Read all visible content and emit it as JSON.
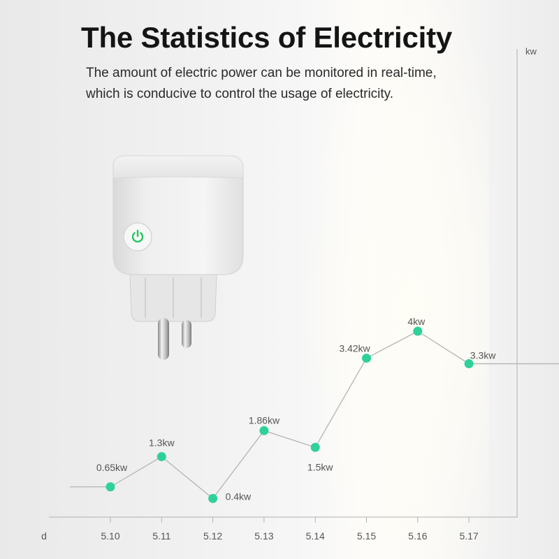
{
  "header": {
    "title": "The Statistics of Electricity",
    "subtitle_line1": "The amount of electric power can be monitored in real-time,",
    "subtitle_line2": "which is conducive to control the usage of electricity."
  },
  "colors": {
    "accent_green": "#2fd19b",
    "line": "#b4b4b4",
    "axis": "#b0b0b0",
    "text": "#555555",
    "power_icon": "#22c55e"
  },
  "product": {
    "icon": "power-icon"
  },
  "chart_data": {
    "type": "line",
    "title": "The Statistics of Electricity",
    "xlabel": "d",
    "ylabel": "kw",
    "categories": [
      "5.10",
      "5.11",
      "5.12",
      "5.13",
      "5.14",
      "5.15",
      "5.16",
      "5.17"
    ],
    "values": [
      0.65,
      1.3,
      0.4,
      1.86,
      1.5,
      3.42,
      4,
      3.3
    ],
    "data_labels": [
      "0.65kw",
      "1.3kw",
      "0.4kw",
      "1.86kw",
      "1.5kw",
      "3.42kw",
      "4kw",
      "3.3kw"
    ],
    "ylim": [
      0,
      4.4
    ],
    "grid": false,
    "legend": "none"
  }
}
